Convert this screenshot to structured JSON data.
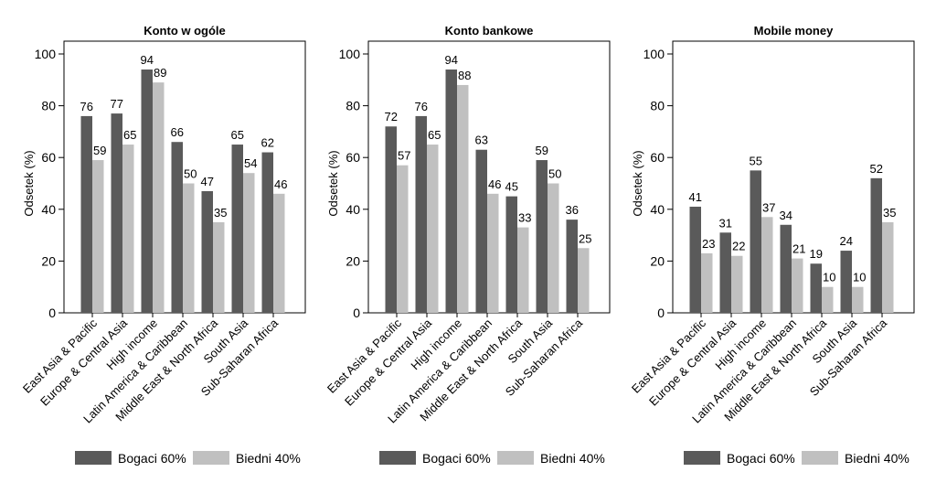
{
  "legend": {
    "position": "bottom"
  },
  "colors": {
    "Bogaci 60%": "#5a5a5a",
    "Biedni 40%": "#c0c0c0"
  },
  "chart_data": [
    {
      "type": "bar",
      "title": "Konto w ogóle",
      "ylabel": "Odsetek (%)",
      "xlabel": "",
      "ylim": [
        0,
        100
      ],
      "yticks": [
        0,
        20,
        40,
        60,
        80,
        100
      ],
      "grid": false,
      "categories": [
        "East Asia & Pacific",
        "Europe & Central Asia",
        "High income",
        "Latin America & Caribbean",
        "Middle East & North Africa",
        "South Asia",
        "Sub-Saharan Africa"
      ],
      "series": [
        {
          "name": "Bogaci 60%",
          "values": [
            76,
            77,
            94,
            66,
            47,
            65,
            62
          ]
        },
        {
          "name": "Biedni 40%",
          "values": [
            59,
            65,
            89,
            50,
            35,
            54,
            46
          ]
        }
      ]
    },
    {
      "type": "bar",
      "title": "Konto bankowe",
      "ylabel": "Odsetek (%)",
      "xlabel": "",
      "ylim": [
        0,
        100
      ],
      "yticks": [
        0,
        20,
        40,
        60,
        80,
        100
      ],
      "grid": false,
      "categories": [
        "East Asia & Pacific",
        "Europe & Central Asia",
        "High income",
        "Latin America & Caribbean",
        "Middle East & North Africa",
        "South Asia",
        "Sub-Saharan Africa"
      ],
      "series": [
        {
          "name": "Bogaci 60%",
          "values": [
            72,
            76,
            94,
            63,
            45,
            59,
            36
          ]
        },
        {
          "name": "Biedni 40%",
          "values": [
            57,
            65,
            88,
            46,
            33,
            50,
            25
          ]
        }
      ]
    },
    {
      "type": "bar",
      "title": "Mobile money",
      "ylabel": "Odsetek (%)",
      "xlabel": "",
      "ylim": [
        0,
        100
      ],
      "yticks": [
        0,
        20,
        40,
        60,
        80,
        100
      ],
      "grid": false,
      "categories": [
        "East Asia & Pacific",
        "Europe & Central Asia",
        "High income",
        "Latin America & Caribbean",
        "Middle East & North Africa",
        "South Asia",
        "Sub-Saharan Africa"
      ],
      "series": [
        {
          "name": "Bogaci 60%",
          "values": [
            41,
            31,
            55,
            34,
            19,
            24,
            52
          ]
        },
        {
          "name": "Biedni 40%",
          "values": [
            23,
            22,
            37,
            21,
            10,
            10,
            35
          ]
        }
      ]
    }
  ]
}
